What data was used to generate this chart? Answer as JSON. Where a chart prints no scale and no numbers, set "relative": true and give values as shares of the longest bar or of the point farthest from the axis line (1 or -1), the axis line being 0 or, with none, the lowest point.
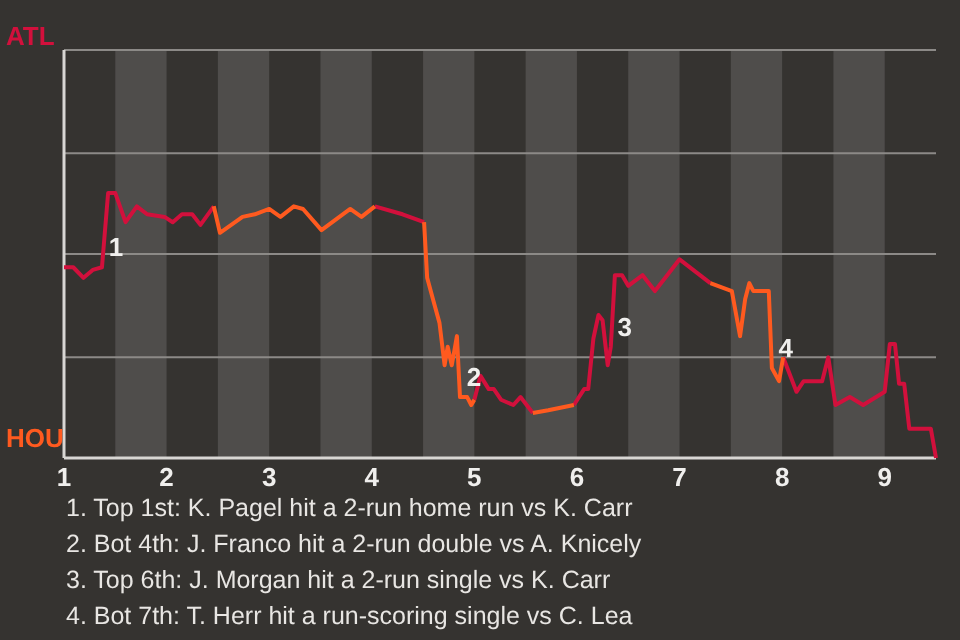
{
  "chart_data": {
    "type": "line",
    "relative": true,
    "x": [
      1,
      1.09,
      1.19,
      1.28,
      1.37,
      1.43,
      1.5,
      1.6,
      1.71,
      1.81,
      1.98,
      2.06,
      2.15,
      2.25,
      2.33,
      2.46,
      2.52,
      2.74,
      2.86,
      3,
      3.11,
      3.24,
      3.33,
      3.51,
      3.79,
      3.9,
      4.03,
      4.3,
      4.51,
      4.54,
      4.61,
      4.66,
      4.71,
      4.74,
      4.78,
      4.83,
      4.86,
      4.93,
      4.97,
      5,
      5.06,
      5.14,
      5.19,
      5.26,
      5.38,
      5.45,
      5.57,
      5.72,
      5.97,
      6.07,
      6.11,
      6.16,
      6.21,
      6.25,
      6.3,
      6.33,
      6.37,
      6.44,
      6.5,
      6.64,
      6.76,
      6.88,
      7,
      7.3,
      7.51,
      7.59,
      7.64,
      7.68,
      7.72,
      7.87,
      7.9,
      7.97,
      8.01,
      8.14,
      8.21,
      8.39,
      8.45,
      8.52,
      8.66,
      8.79,
      9,
      9.05,
      9.1,
      9.14,
      9.19,
      9.24,
      9.45,
      9.5
    ],
    "series": [
      {
        "color": "#d2103c",
        "values": [
          0.72,
          0.72,
          0.68,
          0.71,
          0.72,
          1,
          1,
          0.89,
          0.95,
          0.92,
          0.91,
          0.89,
          0.92,
          0.92,
          0.88,
          0.95,
          null,
          null,
          null,
          null,
          null,
          null,
          null,
          null,
          null,
          null,
          0.95,
          0.92,
          0.89,
          null,
          null,
          null,
          null,
          null,
          null,
          null,
          null,
          null,
          null,
          0.22,
          0.31,
          0.26,
          0.26,
          0.22,
          0.2,
          0.23,
          0.17,
          null,
          0.2,
          0.26,
          0.26,
          0.45,
          0.54,
          0.52,
          0.35,
          0.42,
          0.69,
          0.69,
          0.65,
          0.69,
          0.63,
          0.69,
          0.75,
          0.66,
          null,
          null,
          null,
          null,
          null,
          null,
          null,
          null,
          0.38,
          0.25,
          0.29,
          0.29,
          0.38,
          0.2,
          0.23,
          0.2,
          0.25,
          0.43,
          0.43,
          0.28,
          0.28,
          0.11,
          0.11,
          0
        ]
      },
      {
        "color": "#ff5a1f",
        "values": [
          null,
          null,
          null,
          null,
          null,
          null,
          null,
          null,
          null,
          null,
          null,
          null,
          null,
          null,
          null,
          0.95,
          0.85,
          0.91,
          0.92,
          0.94,
          0.91,
          0.95,
          0.94,
          0.86,
          0.94,
          0.91,
          0.95,
          null,
          0.89,
          0.68,
          0.58,
          0.51,
          0.35,
          0.42,
          0.35,
          0.46,
          0.23,
          0.23,
          0.2,
          0.22,
          null,
          null,
          null,
          null,
          null,
          null,
          0.17,
          0.18,
          0.2,
          null,
          null,
          null,
          null,
          null,
          null,
          null,
          null,
          null,
          null,
          null,
          null,
          null,
          null,
          0.66,
          0.63,
          0.46,
          0.6,
          0.66,
          0.63,
          0.63,
          0.34,
          0.29,
          0.38,
          null,
          null,
          null,
          null,
          null,
          null,
          null,
          null,
          null,
          null,
          null,
          null,
          null,
          null,
          null
        ]
      }
    ],
    "xlim": [
      1,
      9.5
    ],
    "xticks": [
      1,
      2,
      3,
      4,
      5,
      6,
      7,
      8,
      9
    ],
    "ref_lines": [
      {
        "axis": "y",
        "value": 0.38,
        "color": "#8c8a87"
      },
      {
        "axis": "y",
        "value": 0.77,
        "color": "#8c8a87"
      },
      {
        "axis": "y",
        "value": 1.15,
        "color": "#8c8a87"
      },
      {
        "axis": "y",
        "value": 1.54,
        "color": "#8c8a87"
      }
    ],
    "bands": [
      {
        "axis": "x",
        "from": 1.5,
        "to": 2,
        "color": "#4f4d4b"
      },
      {
        "axis": "x",
        "from": 2.5,
        "to": 3,
        "color": "#4f4d4b"
      },
      {
        "axis": "x",
        "from": 3.5,
        "to": 4,
        "color": "#4f4d4b"
      },
      {
        "axis": "x",
        "from": 4.5,
        "to": 5,
        "color": "#4f4d4b"
      },
      {
        "axis": "x",
        "from": 5.5,
        "to": 6,
        "color": "#4f4d4b"
      },
      {
        "axis": "x",
        "from": 6.5,
        "to": 7,
        "color": "#4f4d4b"
      },
      {
        "axis": "x",
        "from": 7.5,
        "to": 8,
        "color": "#4f4d4b"
      },
      {
        "axis": "x",
        "from": 8.5,
        "to": 9,
        "color": "#4f4d4b"
      }
    ],
    "annotations": [
      "ATL",
      "HOU",
      {
        "text": "1",
        "x": 1.37,
        "y": 0.72
      },
      {
        "text": "2",
        "x": 4.86,
        "y": 0.23
      },
      {
        "text": "3",
        "x": 6.33,
        "y": 0.42
      },
      {
        "text": "4",
        "x": 7.9,
        "y": 0.34
      },
      "1. Top 1st: K. Pagel hit a 2-run home run vs K. Carr",
      "2. Bot 4th: J. Franco hit a 2-run double vs A. Knicely",
      "3. Top 6th: J. Morgan hit a 2-run single vs K. Carr",
      "4. Bot 7th: T. Herr hit a run-scoring single vs C. Lea"
    ]
  }
}
